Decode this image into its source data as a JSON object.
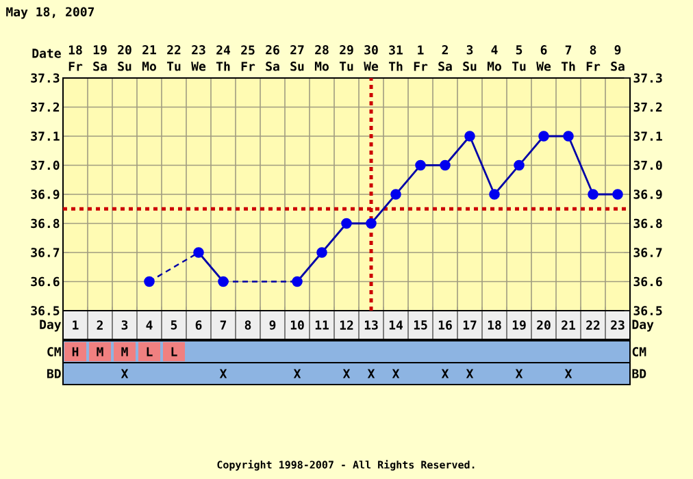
{
  "chart_data": [
    {
      "type": "line",
      "title": "May 18, 2007",
      "xlabel": "Day",
      "x2label": "Date",
      "x": [
        4,
        6,
        7,
        10,
        11,
        12,
        13,
        14,
        15,
        16,
        17,
        18,
        19,
        20,
        21,
        22,
        23
      ],
      "series": [
        {
          "color": "#0000ee",
          "values": [
            36.6,
            36.7,
            36.6,
            36.6,
            36.7,
            36.8,
            36.8,
            36.9,
            37.0,
            37.0,
            37.1,
            36.9,
            37.0,
            37.1,
            37.1,
            36.9,
            36.9
          ]
        }
      ],
      "xlim": [
        0.5,
        23.5
      ],
      "xticks": [
        1,
        2,
        3,
        4,
        5,
        6,
        7,
        8,
        9,
        10,
        11,
        12,
        13,
        14,
        15,
        16,
        17,
        18,
        19,
        20,
        21,
        22,
        23,
        {
          "value": 0.5,
          "label": null
        },
        {
          "value": 1.5,
          "label": null
        },
        {
          "value": 2.5,
          "label": null
        },
        {
          "value": 3.5,
          "label": null
        },
        {
          "value": 4.5,
          "label": null
        },
        {
          "value": 5.5,
          "label": null
        },
        {
          "value": 6.5,
          "label": null
        },
        {
          "value": 7.5,
          "label": null
        },
        {
          "value": 8.5,
          "label": null
        },
        {
          "value": 9.5,
          "label": null
        },
        {
          "value": 10.5,
          "label": null
        },
        {
          "value": 11.5,
          "label": null
        },
        {
          "value": 12.5,
          "label": null
        },
        {
          "value": 13.5,
          "label": null
        },
        {
          "value": 14.5,
          "label": null
        },
        {
          "value": 15.5,
          "label": null
        },
        {
          "value": 16.5,
          "label": null
        },
        {
          "value": 17.5,
          "label": null
        },
        {
          "value": 18.5,
          "label": null
        },
        {
          "value": 19.5,
          "label": null
        },
        {
          "value": 20.5,
          "label": null
        },
        {
          "value": 21.5,
          "label": null
        },
        {
          "value": 22.5,
          "label": null
        },
        {
          "value": 23.5,
          "label": null
        }
      ],
      "x2lim": [
        "2007-05-17T12:00",
        "2007-06-09T12:00"
      ],
      "x2ticks": [
        {
          "value": "2007-05-18",
          "label": "18 Fr"
        },
        {
          "value": "2007-05-19",
          "label": "19 Sa"
        },
        {
          "value": "2007-05-20",
          "label": "20 Su"
        },
        {
          "value": "2007-05-21",
          "label": "21 Mo"
        },
        {
          "value": "2007-05-22",
          "label": "22 Tu"
        },
        {
          "value": "2007-05-23",
          "label": "23 We"
        },
        {
          "value": "2007-05-24",
          "label": "24 Th"
        },
        {
          "value": "2007-05-25",
          "label": "25 Fr"
        },
        {
          "value": "2007-05-26",
          "label": "26 Sa"
        },
        {
          "value": "2007-05-27",
          "label": "27 Su"
        },
        {
          "value": "2007-05-28",
          "label": "28 Mo"
        },
        {
          "value": "2007-05-29",
          "label": "29 Tu"
        },
        {
          "value": "2007-05-30",
          "label": "30 We"
        },
        {
          "value": "2007-05-31",
          "label": "31 Th"
        },
        {
          "value": "2007-06-01",
          "label": "1 Fr"
        },
        {
          "value": "2007-06-02",
          "label": "2 Sa"
        },
        {
          "value": "2007-06-03",
          "label": "3 Su"
        },
        {
          "value": "2007-06-04",
          "label": "4 Mo"
        },
        {
          "value": "2007-06-05",
          "label": "5 Tu"
        },
        {
          "value": "2007-06-06",
          "label": "6 We"
        },
        {
          "value": "2007-06-07",
          "label": "7 Th"
        },
        {
          "value": "2007-06-08",
          "label": "8 Fr"
        },
        {
          "value": "2007-06-09",
          "label": "9 Sa"
        }
      ],
      "ylim": [
        36.5,
        37.3
      ],
      "yticks": [
        36.5,
        36.6,
        36.7,
        36.8,
        36.9,
        {
          "value": 37,
          "label": "37.0"
        },
        37.1,
        37.2,
        37.3
      ],
      "y2lim": [
        36.5,
        37.3
      ],
      "y2ticks": [
        36.5,
        36.6,
        36.7,
        36.8,
        36.9,
        {
          "value": 37,
          "label": "37.0"
        },
        37.1,
        37.2,
        37.3
      ],
      "marker": "circle",
      "grid": true,
      "ref_lines": [
        {
          "axis": "y",
          "value": 36.85,
          "color": "#cc0000",
          "line_style": "dotted"
        },
        {
          "axis": "x",
          "value": 13,
          "color": "#cc0000",
          "line_style": "dotted"
        }
      ],
      "annotations": [
        "Copyright 1998-2007 - All Rights Reserved."
      ]
    },
    {
      "type": "other",
      "colors": [
        "#f08080",
        "#8db4e2"
      ],
      "categories": [
        null,
        null,
        null,
        null,
        null,
        null,
        null,
        null,
        null,
        null,
        null,
        null,
        null,
        null,
        null,
        null,
        null,
        null,
        null,
        null,
        null,
        null,
        null
      ],
      "y_categories": [
        "CM",
        "BD"
      ],
      "y2_categories": [
        "CM",
        "BD"
      ],
      "cell_labels": [
        [
          "H",
          "M",
          "M",
          "L",
          "L",
          null,
          null,
          null,
          null,
          null,
          null,
          null,
          null,
          null,
          null,
          null,
          null,
          null,
          null,
          null,
          null,
          null,
          null
        ],
        [
          null,
          null,
          "X",
          null,
          null,
          null,
          "X",
          null,
          null,
          "X",
          null,
          "X",
          "X",
          "X",
          null,
          "X",
          "X",
          null,
          "X",
          null,
          "X",
          null,
          null
        ]
      ]
    }
  ]
}
